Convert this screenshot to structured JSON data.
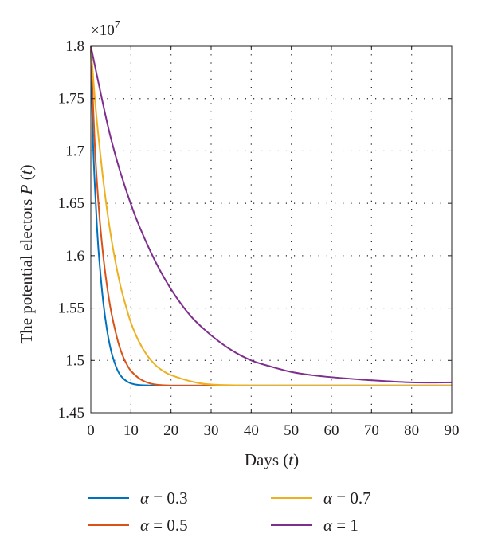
{
  "chart_data": {
    "type": "line",
    "title": "",
    "xlabel": "Days (t)",
    "ylabel": "The potential electors P (t)",
    "y_exponent_label": "×10",
    "y_exponent_power": "7",
    "xlim": [
      0,
      90
    ],
    "ylim": [
      1.45,
      1.8
    ],
    "xticks": [
      0,
      10,
      20,
      30,
      40,
      50,
      60,
      70,
      80,
      90
    ],
    "yticks": [
      1.45,
      1.5,
      1.55,
      1.6,
      1.65,
      1.7,
      1.75,
      1.8
    ],
    "xtick_labels": [
      "0",
      "10",
      "20",
      "30",
      "40",
      "50",
      "60",
      "70",
      "80",
      "90"
    ],
    "ytick_labels": [
      "1.45",
      "1.5",
      "1.55",
      "1.6",
      "1.65",
      "1.7",
      "1.75",
      "1.8"
    ],
    "grid": true,
    "legend_placement": "bottom",
    "series": [
      {
        "name": "α = 0.3",
        "color": "#0072bd",
        "x": [
          0,
          0.5,
          1,
          1.5,
          2,
          3,
          4,
          5,
          6,
          7,
          8,
          9,
          10,
          12,
          15,
          20,
          30,
          50,
          90
        ],
        "y": [
          1.8,
          1.715,
          1.667,
          1.63,
          1.601,
          1.559,
          1.53,
          1.51,
          1.497,
          1.488,
          1.483,
          1.48,
          1.478,
          1.4765,
          1.476,
          1.476,
          1.476,
          1.476,
          1.476
        ]
      },
      {
        "name": "α = 0.5",
        "color": "#d95319",
        "x": [
          0,
          1,
          2,
          3,
          4,
          5,
          6,
          7,
          8,
          9,
          10,
          12,
          14,
          16,
          20,
          30,
          50,
          90
        ],
        "y": [
          1.8,
          1.705,
          1.645,
          1.603,
          1.572,
          1.548,
          1.53,
          1.515,
          1.504,
          1.496,
          1.49,
          1.483,
          1.479,
          1.477,
          1.476,
          1.476,
          1.476,
          1.476
        ]
      },
      {
        "name": "α = 0.7",
        "color": "#edb120",
        "x": [
          0,
          1,
          2,
          3,
          4,
          5,
          6,
          7,
          8,
          10,
          12,
          14,
          16,
          18,
          20,
          25,
          30,
          40,
          50,
          90
        ],
        "y": [
          1.8,
          1.75,
          1.71,
          1.675,
          1.645,
          1.619,
          1.597,
          1.578,
          1.562,
          1.536,
          1.518,
          1.505,
          1.496,
          1.49,
          1.486,
          1.48,
          1.477,
          1.476,
          1.476,
          1.476
        ]
      },
      {
        "name": "α = 1",
        "color": "#7e2f8e",
        "x": [
          0,
          5,
          10,
          15,
          20,
          25,
          30,
          35,
          40,
          45,
          50,
          55,
          60,
          70,
          80,
          90
        ],
        "y": [
          1.8,
          1.712,
          1.649,
          1.603,
          1.568,
          1.542,
          1.524,
          1.51,
          1.5,
          1.494,
          1.489,
          1.486,
          1.484,
          1.481,
          1.479,
          1.479
        ]
      }
    ]
  },
  "legend": [
    {
      "symbol": "α",
      "rest": " = 0.3",
      "color": "#0072bd"
    },
    {
      "symbol": "α",
      "rest": " = 0.7",
      "color": "#edb120"
    },
    {
      "symbol": "α",
      "rest": " = 0.5",
      "color": "#d95319"
    },
    {
      "symbol": "α",
      "rest": " = 1",
      "color": "#7e2f8e"
    }
  ]
}
